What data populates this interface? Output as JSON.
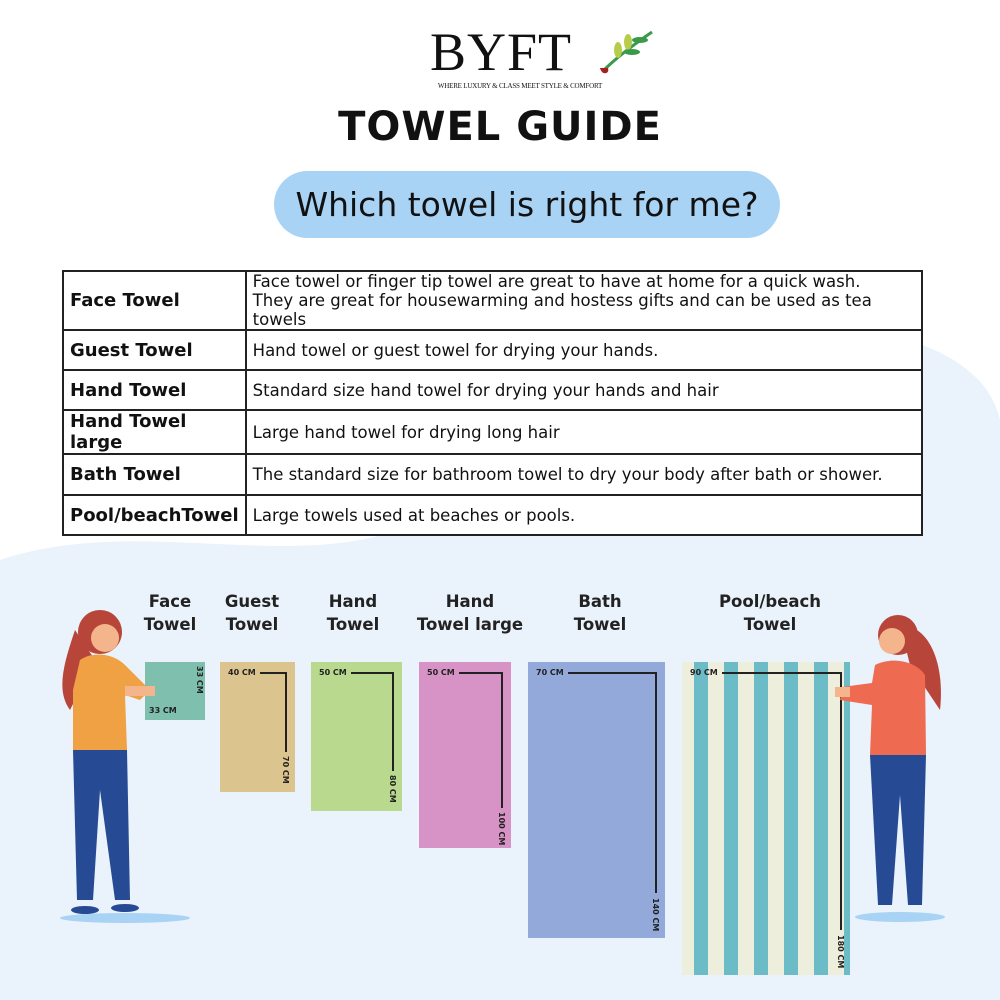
{
  "brand": {
    "name": "BYFT",
    "tagline": "WHERE LUXURY & CLASS MEET STYLE & COMFORT"
  },
  "title": "TOWEL GUIDE",
  "question": "Which towel is right for me?",
  "table": [
    {
      "name": "Face Towel",
      "desc": [
        "Face towel or finger tip towel are great to have at home for a quick wash.",
        "They are great for housewarming and hostess gifts and can be used as tea towels"
      ]
    },
    {
      "name": "Guest Towel",
      "desc": [
        "Hand towel or guest towel for drying your hands."
      ]
    },
    {
      "name": "Hand Towel",
      "desc": [
        "Standard size hand towel for drying your hands and hair"
      ]
    },
    {
      "name": "Hand Towel large",
      "desc": [
        "Large hand towel for drying long hair"
      ]
    },
    {
      "name": "Bath Towel",
      "desc": [
        "The standard size for bathroom towel to dry your body after bath or shower."
      ]
    },
    {
      "name": "Pool/beachTowel",
      "desc": [
        "Large towels used at beaches or pools."
      ]
    }
  ],
  "towels": [
    {
      "label": [
        "Face",
        "Towel"
      ],
      "width": "33 CM",
      "height": "33 CM",
      "color": "#7fbfae"
    },
    {
      "label": [
        "Guest",
        "Towel"
      ],
      "width": "40 CM",
      "height": "70 CM",
      "color": "#dcc48e"
    },
    {
      "label": [
        "Hand",
        "Towel"
      ],
      "width": "50 CM",
      "height": "80 CM",
      "color": "#b9d98f"
    },
    {
      "label": [
        "Hand",
        "Towel large"
      ],
      "width": "50 CM",
      "height": "100 CM",
      "color": "#d893c6"
    },
    {
      "label": [
        "Bath",
        "Towel"
      ],
      "width": "70 CM",
      "height": "140 CM",
      "color": "#93a9d9"
    },
    {
      "label": [
        "Pool/beach",
        "Towel"
      ],
      "width": "90 CM",
      "height": "180 CM",
      "color": "#eeeedd",
      "stripe": "#6bbcc6"
    }
  ],
  "colors": {
    "pill": "#a9d3f5",
    "background_blob": "#eaf2fb"
  }
}
